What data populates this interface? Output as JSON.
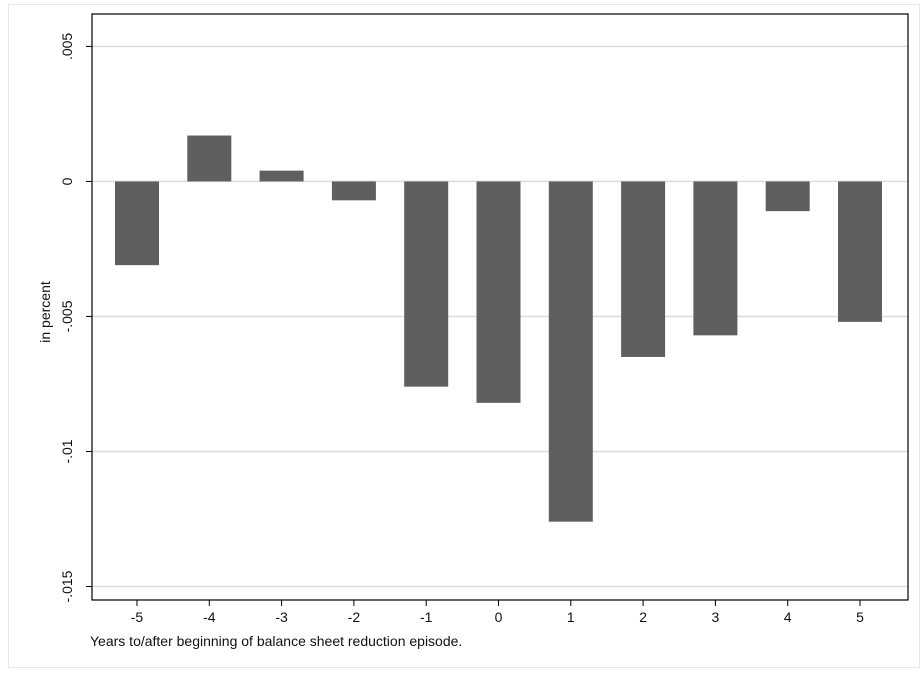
{
  "chart_data": {
    "type": "bar",
    "title": "",
    "xlabel": "Years to/after beginning of balance sheet reduction episode.",
    "ylabel": "in percent",
    "categories": [
      "-5",
      "-4",
      "-3",
      "-2",
      "-1",
      "0",
      "1",
      "2",
      "3",
      "4",
      "5"
    ],
    "values": [
      -0.0031,
      0.0017,
      0.0004,
      -0.0007,
      -0.0076,
      -0.0082,
      -0.0126,
      -0.0065,
      -0.0057,
      -0.0011,
      -0.0052
    ],
    "ylim": [
      -0.0155,
      0.0062
    ],
    "yticks": [
      0.005,
      0,
      -0.005,
      -0.01,
      -0.015
    ],
    "ytick_labels": [
      ".005",
      "0",
      "-.005",
      "-.01",
      "-.015"
    ],
    "grid": true,
    "bar_color": "#5f5f5f",
    "grid_color": "#dcdcdc"
  }
}
